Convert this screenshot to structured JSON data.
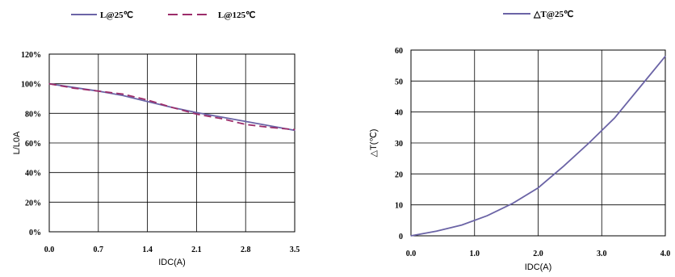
{
  "chart_data": [
    {
      "type": "line",
      "xlabel": "IDC(A)",
      "ylabel": "L/L0A",
      "xlim": [
        0.0,
        3.5
      ],
      "ylim": [
        0,
        120
      ],
      "x_ticks": [
        "0.0",
        "0.7",
        "1.4",
        "2.1",
        "2.8",
        "3.5"
      ],
      "y_ticks": [
        "0%",
        "20%",
        "40%",
        "60%",
        "80%",
        "100%",
        "120%"
      ],
      "grid": true,
      "legend_position": "top-left",
      "series": [
        {
          "name": "L@25℃",
          "color": "#6b64a6",
          "style": "solid",
          "x": [
            0.0,
            0.35,
            0.7,
            1.05,
            1.4,
            1.75,
            2.1,
            2.45,
            2.8,
            3.15,
            3.5
          ],
          "y": [
            100,
            97.5,
            95,
            92,
            88,
            84,
            80.5,
            77.5,
            74.5,
            71.5,
            68.5
          ]
        },
        {
          "name": "L@125℃",
          "color": "#9c2d6a",
          "style": "dashed",
          "x": [
            0.0,
            0.35,
            0.7,
            1.05,
            1.4,
            1.75,
            2.1,
            2.45,
            2.8,
            3.15,
            3.5
          ],
          "y": [
            100,
            97,
            95,
            93,
            89,
            84,
            79.5,
            76.5,
            72.5,
            70.5,
            69
          ]
        }
      ]
    },
    {
      "type": "line",
      "xlabel": "IDC(A)",
      "ylabel": "△T(℃)",
      "xlim": [
        0.0,
        4.0
      ],
      "ylim": [
        0,
        60
      ],
      "x_ticks": [
        "0.0",
        "1.0",
        "2.0",
        "3.0",
        "4.0"
      ],
      "y_ticks": [
        "0",
        "10",
        "20",
        "30",
        "40",
        "50",
        "60"
      ],
      "grid": true,
      "legend_position": "top-center",
      "series": [
        {
          "name": "△T@25℃",
          "color": "#6b64a6",
          "style": "solid",
          "x": [
            0.0,
            0.4,
            0.8,
            1.2,
            1.6,
            2.0,
            2.4,
            2.8,
            3.2,
            3.6,
            4.0
          ],
          "y": [
            0,
            1.5,
            3.5,
            6.5,
            10.5,
            15.5,
            22.5,
            30,
            38,
            48,
            58
          ]
        }
      ]
    }
  ]
}
